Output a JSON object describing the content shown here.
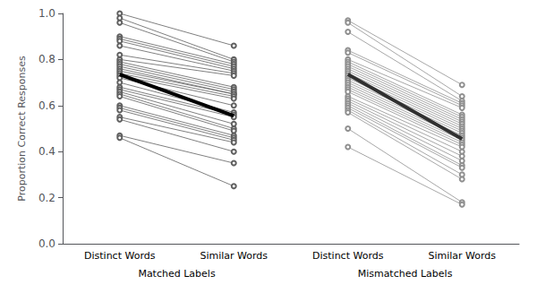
{
  "chart_data": {
    "type": "line",
    "ylabel": "Proportion Correct Responses",
    "ylim": [
      0,
      1.0
    ],
    "yticks": [
      {
        "value": 0,
        "label": "0.0"
      },
      0.2,
      0.4,
      0.6,
      0.8,
      {
        "value": 1.0,
        "label": "1.0"
      }
    ],
    "grid": false,
    "marker": "circle-open",
    "groups": [
      {
        "label": "Matched Labels",
        "categories": [
          "Distinct Words",
          "Similar Words"
        ],
        "color": "#606060",
        "distinct": [
          1.0,
          0.98,
          0.96,
          0.9,
          0.89,
          0.88,
          0.86,
          0.82,
          0.8,
          0.79,
          0.78,
          0.77,
          0.76,
          0.75,
          0.74,
          0.73,
          0.72,
          0.7,
          0.68,
          0.67,
          0.66,
          0.65,
          0.64,
          0.6,
          0.59,
          0.58,
          0.55,
          0.54,
          0.47,
          0.46
        ],
        "similar": [
          0.86,
          0.8,
          0.79,
          0.78,
          0.77,
          0.76,
          0.75,
          0.74,
          0.73,
          0.68,
          0.67,
          0.66,
          0.65,
          0.65,
          0.64,
          0.63,
          0.6,
          0.57,
          0.56,
          0.55,
          0.52,
          0.5,
          0.49,
          0.47,
          0.46,
          0.45,
          0.44,
          0.4,
          0.35,
          0.25
        ],
        "mean": [
          0.735,
          0.555
        ],
        "mean_color": "#000000"
      },
      {
        "label": "Mismatched Labels",
        "categories": [
          "Distinct Words",
          "Similar Words"
        ],
        "color": "#909090",
        "distinct": [
          0.97,
          0.96,
          0.92,
          0.84,
          0.83,
          0.8,
          0.79,
          0.78,
          0.77,
          0.76,
          0.75,
          0.74,
          0.73,
          0.72,
          0.71,
          0.7,
          0.69,
          0.68,
          0.67,
          0.66,
          0.64,
          0.63,
          0.62,
          0.61,
          0.6,
          0.59,
          0.58,
          0.57,
          0.5,
          0.42
        ],
        "similar": [
          0.69,
          0.64,
          0.62,
          0.61,
          0.6,
          0.59,
          0.56,
          0.55,
          0.54,
          0.53,
          0.52,
          0.51,
          0.5,
          0.49,
          0.48,
          0.47,
          0.46,
          0.45,
          0.44,
          0.43,
          0.42,
          0.4,
          0.38,
          0.36,
          0.34,
          0.33,
          0.3,
          0.28,
          0.18,
          0.17
        ],
        "mean": [
          0.735,
          0.455
        ],
        "mean_color": "#303030"
      }
    ]
  }
}
